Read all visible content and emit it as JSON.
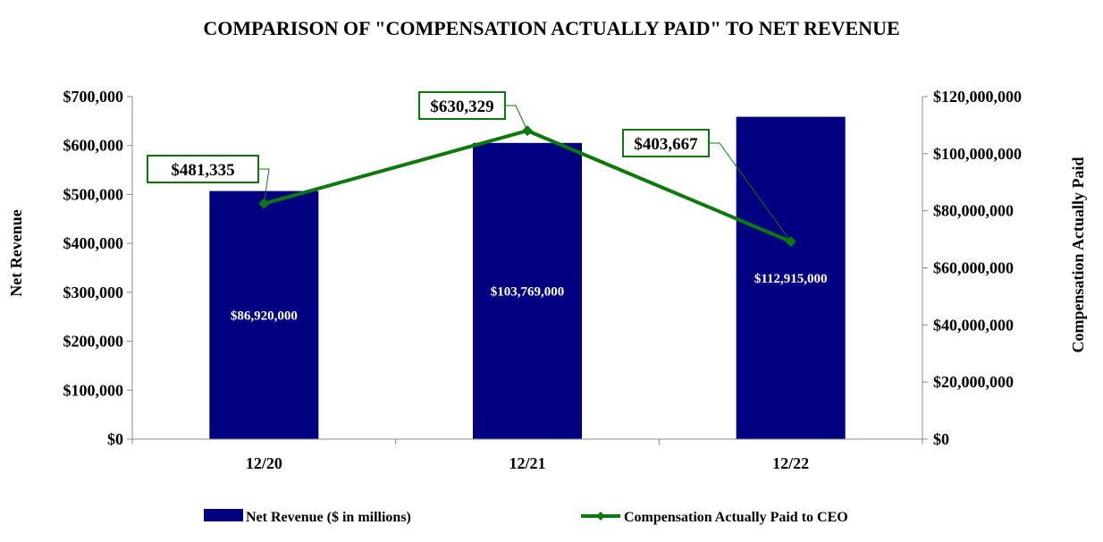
{
  "chart_data": {
    "type": "bar+line",
    "title": "COMPARISON OF \"COMPENSATION ACTUALLY PAID\" TO NET REVENUE",
    "categories": [
      "12/20",
      "12/21",
      "12/22"
    ],
    "left_axis": {
      "label": "Net Revenue",
      "min": 0,
      "max": 700000,
      "step": 100000,
      "tick_labels": [
        "$0",
        "$100,000",
        "$200,000",
        "$300,000",
        "$400,000",
        "$500,000",
        "$600,000",
        "$700,000"
      ]
    },
    "right_axis": {
      "label": "Compensation Actually Paid",
      "min": 0,
      "max": 120000000,
      "step": 20000000,
      "tick_labels": [
        "$0",
        "$20,000,000",
        "$40,000,000",
        "$60,000,000",
        "$80,000,000",
        "$100,000,000",
        "$120,000,000"
      ]
    },
    "bar_series": {
      "name": "Net Revenue ($ in millions)",
      "axis": "right",
      "values": [
        86920000,
        103769000,
        112915000
      ],
      "labels": [
        "$86,920,000",
        "$103,769,000",
        "$112,915,000"
      ],
      "color": "#000080"
    },
    "line_series": {
      "name": "Compensation Actually Paid to CEO",
      "axis": "left",
      "values": [
        481335,
        630329,
        403667
      ],
      "labels": [
        "$481,335",
        "$630,329",
        "$403,667"
      ],
      "color": "#0b7a0b"
    },
    "legend_position": "bottom",
    "grid": false
  }
}
